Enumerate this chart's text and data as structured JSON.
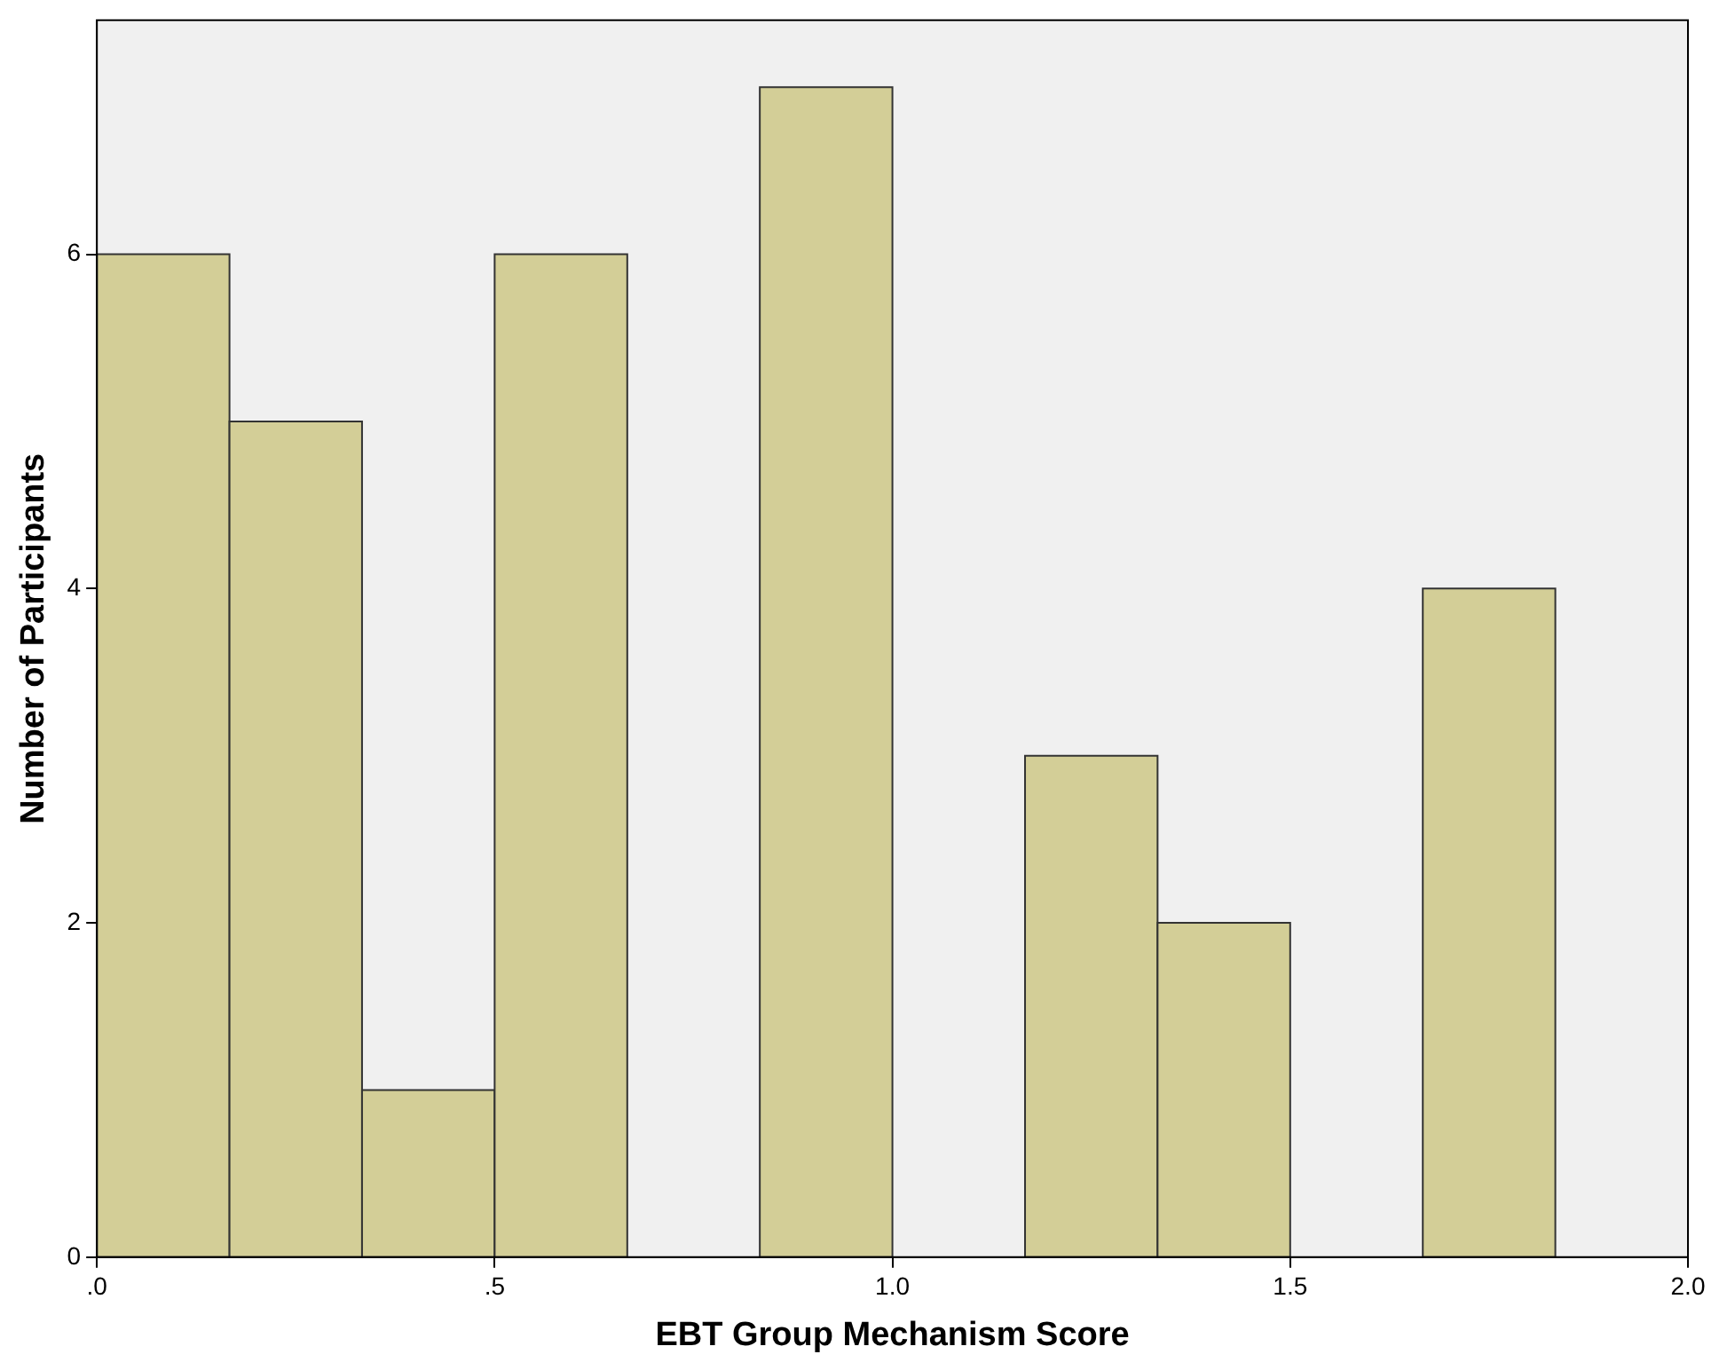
{
  "chart_data": {
    "type": "histogram",
    "xlabel": "EBT Group Mechanism Score",
    "ylabel": "Number of Participants",
    "bins": [
      0,
      0.1667,
      0.3333,
      0.5,
      0.6667,
      0.8333,
      1,
      1.1667,
      1.3333,
      1.5,
      1.6667,
      1.8333
    ],
    "values": [
      6,
      5,
      1,
      6,
      0,
      7,
      0,
      3,
      2,
      0,
      4
    ],
    "color": "#d3ce97",
    "xlim": [
      0,
      2
    ],
    "xticks": [
      {
        "value": 0,
        "label": ".0"
      },
      {
        "value": 0.5,
        "label": ".5"
      },
      {
        "value": 1,
        "label": "1.0"
      },
      {
        "value": 1.5,
        "label": "1.5"
      },
      {
        "value": 2,
        "label": "2.0"
      }
    ],
    "ylim": [
      0,
      7.4
    ],
    "yticks": [
      0,
      2,
      4,
      6
    ],
    "grid": false,
    "legend": false
  }
}
